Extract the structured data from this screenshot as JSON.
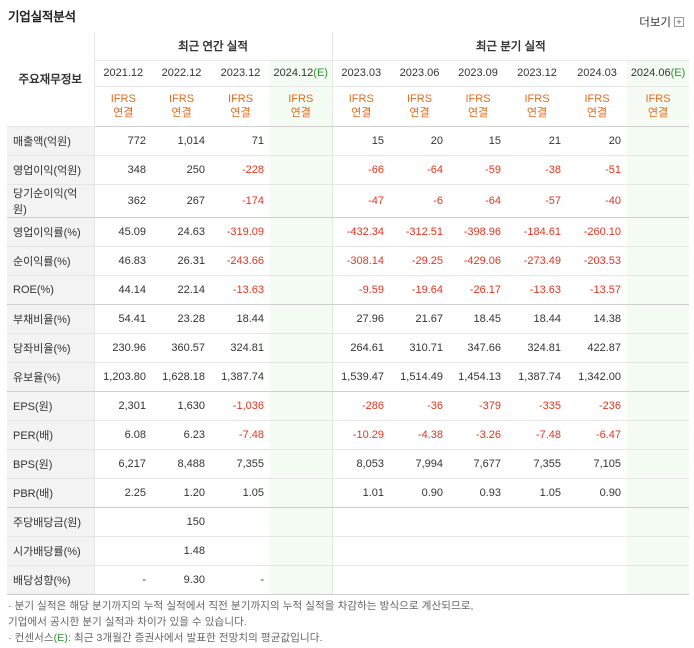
{
  "title": "기업실적분석",
  "more_label": "더보기",
  "more_icon": "plus-icon",
  "header": {
    "row_label": "주요재무정보",
    "annual_label": "최근 연간 실적",
    "quarter_label": "최근 분기 실적",
    "ifrs": "IFRS",
    "consolidated": "연결",
    "annual_periods": [
      "2021.12",
      "2022.12",
      "2023.12",
      "2024.12"
    ],
    "annual_estimate": "(E)",
    "quarter_periods": [
      "2023.03",
      "2023.06",
      "2023.09",
      "2023.12",
      "2024.03",
      "2024.06"
    ],
    "quarter_estimate": "(E)"
  },
  "colors": {
    "negative": "#e8331f",
    "ifrs": "#e66a1e",
    "estimate_bg": "#f3fbf3",
    "estimate_mark": "#2f8f2f"
  },
  "rows": [
    {
      "label": "매출액(억원)",
      "annual": [
        "772",
        "1,014",
        "71",
        ""
      ],
      "quarter": [
        "15",
        "20",
        "15",
        "21",
        "20",
        ""
      ]
    },
    {
      "label": "영업이익(억원)",
      "annual": [
        "348",
        "250",
        "-228",
        ""
      ],
      "quarter": [
        "-66",
        "-64",
        "-59",
        "-38",
        "-51",
        ""
      ]
    },
    {
      "label": "당기순이익(억원)",
      "annual": [
        "362",
        "267",
        "-174",
        ""
      ],
      "quarter": [
        "-47",
        "-6",
        "-64",
        "-57",
        "-40",
        ""
      ]
    },
    {
      "label": "영업이익률(%)",
      "annual": [
        "45.09",
        "24.63",
        "-319.09",
        ""
      ],
      "quarter": [
        "-432.34",
        "-312.51",
        "-398.96",
        "-184.61",
        "-260.10",
        ""
      ]
    },
    {
      "label": "순이익률(%)",
      "annual": [
        "46.83",
        "26.31",
        "-243.66",
        ""
      ],
      "quarter": [
        "-308.14",
        "-29.25",
        "-429.06",
        "-273.49",
        "-203.53",
        ""
      ]
    },
    {
      "label": "ROE(%)",
      "annual": [
        "44.14",
        "22.14",
        "-13.63",
        ""
      ],
      "quarter": [
        "-9.59",
        "-19.64",
        "-26.17",
        "-13.63",
        "-13.57",
        ""
      ]
    },
    {
      "label": "부채비율(%)",
      "annual": [
        "54.41",
        "23.28",
        "18.44",
        ""
      ],
      "quarter": [
        "27.96",
        "21.67",
        "18.45",
        "18.44",
        "14.38",
        ""
      ]
    },
    {
      "label": "당좌비율(%)",
      "annual": [
        "230.96",
        "360.57",
        "324.81",
        ""
      ],
      "quarter": [
        "264.61",
        "310.71",
        "347.66",
        "324.81",
        "422.87",
        ""
      ]
    },
    {
      "label": "유보율(%)",
      "annual": [
        "1,203.80",
        "1,628.18",
        "1,387.74",
        ""
      ],
      "quarter": [
        "1,539.47",
        "1,514.49",
        "1,454.13",
        "1,387.74",
        "1,342.00",
        ""
      ]
    },
    {
      "label": "EPS(원)",
      "annual": [
        "2,301",
        "1,630",
        "-1,036",
        ""
      ],
      "quarter": [
        "-286",
        "-36",
        "-379",
        "-335",
        "-236",
        ""
      ]
    },
    {
      "label": "PER(배)",
      "annual": [
        "6.08",
        "6.23",
        "-7.48",
        ""
      ],
      "quarter": [
        "-10.29",
        "-4.38",
        "-3.26",
        "-7.48",
        "-6.47",
        ""
      ]
    },
    {
      "label": "BPS(원)",
      "annual": [
        "6,217",
        "8,488",
        "7,355",
        ""
      ],
      "quarter": [
        "8,053",
        "7,994",
        "7,677",
        "7,355",
        "7,105",
        ""
      ]
    },
    {
      "label": "PBR(배)",
      "annual": [
        "2.25",
        "1.20",
        "1.05",
        ""
      ],
      "quarter": [
        "1.01",
        "0.90",
        "0.93",
        "1.05",
        "0.90",
        ""
      ]
    },
    {
      "label": "주당배당금(원)",
      "annual": [
        "",
        "150",
        "",
        ""
      ],
      "quarter": [
        "",
        "",
        "",
        "",
        "",
        ""
      ]
    },
    {
      "label": "시가배당률(%)",
      "annual": [
        "",
        "1.48",
        "",
        ""
      ],
      "quarter": [
        "",
        "",
        "",
        "",
        "",
        ""
      ]
    },
    {
      "label": "배당성향(%)",
      "annual": [
        "-",
        "9.30",
        "-",
        ""
      ],
      "quarter": [
        "",
        "",
        "",
        "",
        "",
        ""
      ]
    }
  ],
  "notes": {
    "line1": "· 분기 실적은 해당 분기까지의 누적 실적에서 직전 분기까지의 누적 실적을 차감하는 방식으로 계산되므로,",
    "line2": "  기업에서 공시한 분기 실적과 차이가 있을 수 있습니다.",
    "line3_prefix": "· 컨센서스",
    "line3_mark": "(E)",
    "line3_suffix": ": 최근 3개월간 증권사에서 발표한 전망치의 평균값입니다."
  }
}
